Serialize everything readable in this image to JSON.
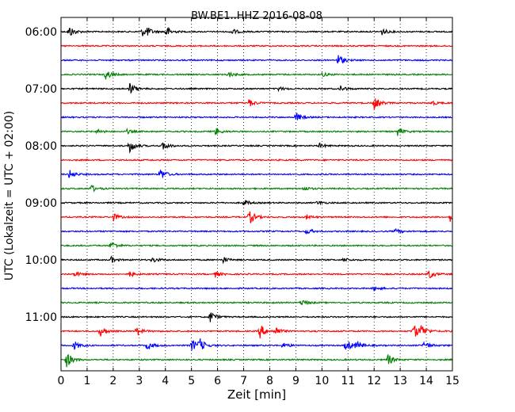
{
  "chart_data": {
    "type": "line",
    "title": "BW.BE1..HHZ 2016-08-08",
    "xlabel": "Zeit  [min]",
    "ylabel": "UTC (Lokalzeit = UTC + 02:00)",
    "xlim": [
      0,
      15
    ],
    "x_ticks": [
      "0",
      "1",
      "2",
      "3",
      "4",
      "5",
      "6",
      "7",
      "8",
      "9",
      "10",
      "11",
      "12",
      "13",
      "14",
      "15"
    ],
    "y_tick_labels": [
      "06:00",
      "07:00",
      "08:00",
      "09:00",
      "10:00",
      "11:00"
    ],
    "grid": true,
    "trace_interval_min": 15,
    "trace_colors": [
      "#000000",
      "#ff0000",
      "#0000ff",
      "#008000"
    ],
    "traces": [
      {
        "start": "06:00",
        "events": [
          [
            0.3,
            8
          ],
          [
            3.1,
            6
          ],
          [
            3.3,
            4
          ],
          [
            4.0,
            8
          ],
          [
            6.5,
            5
          ],
          [
            12.3,
            4
          ]
        ]
      },
      {
        "start": "06:15",
        "events": []
      },
      {
        "start": "06:30",
        "events": [
          [
            10.6,
            8
          ]
        ]
      },
      {
        "start": "06:45",
        "events": [
          [
            1.7,
            7
          ],
          [
            6.4,
            4
          ],
          [
            10.0,
            3
          ]
        ]
      },
      {
        "start": "07:00",
        "events": [
          [
            2.6,
            9
          ],
          [
            8.3,
            3
          ],
          [
            10.7,
            4
          ]
        ]
      },
      {
        "start": "07:15",
        "events": [
          [
            7.2,
            5
          ],
          [
            12.0,
            8
          ],
          [
            14.2,
            3
          ]
        ]
      },
      {
        "start": "07:30",
        "events": [
          [
            9.0,
            6
          ]
        ]
      },
      {
        "start": "07:45",
        "events": [
          [
            1.4,
            3
          ],
          [
            2.5,
            3
          ],
          [
            5.9,
            5
          ],
          [
            12.9,
            5
          ]
        ]
      },
      {
        "start": "08:00",
        "events": [
          [
            2.6,
            10
          ],
          [
            3.9,
            6
          ],
          [
            9.9,
            3
          ]
        ]
      },
      {
        "start": "08:15",
        "events": []
      },
      {
        "start": "08:30",
        "events": [
          [
            0.3,
            6
          ],
          [
            3.8,
            8
          ]
        ]
      },
      {
        "start": "08:45",
        "events": [
          [
            1.1,
            6
          ],
          [
            9.3,
            3
          ]
        ]
      },
      {
        "start": "09:00",
        "events": [
          [
            7.0,
            4
          ],
          [
            9.8,
            3
          ]
        ]
      },
      {
        "start": "09:15",
        "events": [
          [
            2.0,
            5
          ],
          [
            7.2,
            10
          ],
          [
            9.4,
            3
          ],
          [
            14.9,
            6
          ]
        ]
      },
      {
        "start": "09:30",
        "events": [
          [
            9.4,
            4
          ],
          [
            12.8,
            3
          ]
        ]
      },
      {
        "start": "09:45",
        "events": [
          [
            1.9,
            6
          ]
        ]
      },
      {
        "start": "10:00",
        "events": [
          [
            1.9,
            4
          ],
          [
            3.5,
            4
          ],
          [
            6.2,
            4
          ],
          [
            10.8,
            3
          ]
        ]
      },
      {
        "start": "10:15",
        "events": [
          [
            0.5,
            4
          ],
          [
            2.6,
            4
          ],
          [
            5.9,
            4
          ],
          [
            14.1,
            6
          ]
        ]
      },
      {
        "start": "10:30",
        "events": [
          [
            12.0,
            3
          ]
        ]
      },
      {
        "start": "10:45",
        "events": [
          [
            9.2,
            5
          ]
        ]
      },
      {
        "start": "11:00",
        "events": [
          [
            5.7,
            8
          ]
        ]
      },
      {
        "start": "11:15",
        "events": [
          [
            1.5,
            7
          ],
          [
            2.9,
            6
          ],
          [
            7.6,
            10
          ],
          [
            8.2,
            6
          ],
          [
            13.5,
            11
          ],
          [
            13.8,
            7
          ]
        ]
      },
      {
        "start": "11:30",
        "events": [
          [
            0.5,
            6
          ],
          [
            3.3,
            6
          ],
          [
            5.0,
            9
          ],
          [
            5.3,
            8
          ],
          [
            8.5,
            4
          ],
          [
            10.9,
            9
          ],
          [
            11.3,
            6
          ],
          [
            13.9,
            6
          ]
        ]
      },
      {
        "start": "11:45",
        "events": [
          [
            0.2,
            11
          ],
          [
            12.5,
            8
          ]
        ]
      }
    ]
  }
}
